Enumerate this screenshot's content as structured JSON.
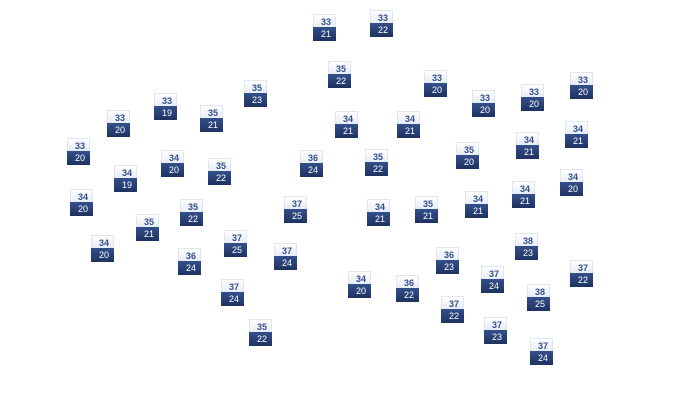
{
  "markers": [
    {
      "high": "33",
      "low": "21"
    },
    {
      "high": "33",
      "low": "22"
    },
    {
      "high": "35",
      "low": "22"
    },
    {
      "high": "33",
      "low": "20"
    },
    {
      "high": "33",
      "low": "20"
    },
    {
      "high": "33",
      "low": "20"
    },
    {
      "high": "33",
      "low": "20"
    },
    {
      "high": "35",
      "low": "23"
    },
    {
      "high": "33",
      "low": "19"
    },
    {
      "high": "35",
      "low": "21"
    },
    {
      "high": "33",
      "low": "20"
    },
    {
      "high": "34",
      "low": "21"
    },
    {
      "high": "34",
      "low": "21"
    },
    {
      "high": "34",
      "low": "21"
    },
    {
      "high": "34",
      "low": "21"
    },
    {
      "high": "33",
      "low": "20"
    },
    {
      "high": "34",
      "low": "20"
    },
    {
      "high": "35",
      "low": "22"
    },
    {
      "high": "36",
      "low": "24"
    },
    {
      "high": "35",
      "low": "22"
    },
    {
      "high": "35",
      "low": "20"
    },
    {
      "high": "34",
      "low": "19"
    },
    {
      "high": "34",
      "low": "20"
    },
    {
      "high": "34",
      "low": "20"
    },
    {
      "high": "35",
      "low": "22"
    },
    {
      "high": "37",
      "low": "25"
    },
    {
      "high": "34",
      "low": "21"
    },
    {
      "high": "35",
      "low": "21"
    },
    {
      "high": "34",
      "low": "21"
    },
    {
      "high": "34",
      "low": "21"
    },
    {
      "high": "35",
      "low": "21"
    },
    {
      "high": "37",
      "low": "25"
    },
    {
      "high": "34",
      "low": "20"
    },
    {
      "high": "36",
      "low": "24"
    },
    {
      "high": "37",
      "low": "24"
    },
    {
      "high": "38",
      "low": "23"
    },
    {
      "high": "36",
      "low": "23"
    },
    {
      "high": "37",
      "low": "24"
    },
    {
      "high": "37",
      "low": "22"
    },
    {
      "high": "34",
      "low": "20"
    },
    {
      "high": "36",
      "low": "22"
    },
    {
      "high": "37",
      "low": "24"
    },
    {
      "high": "38",
      "low": "25"
    },
    {
      "high": "37",
      "low": "22"
    },
    {
      "high": "35",
      "low": "22"
    },
    {
      "high": "37",
      "low": "23"
    },
    {
      "high": "37",
      "low": "24"
    }
  ],
  "colors": {
    "high_text": "#34508a",
    "low_bg": "#1d3260",
    "low_text": "#ffffff"
  }
}
